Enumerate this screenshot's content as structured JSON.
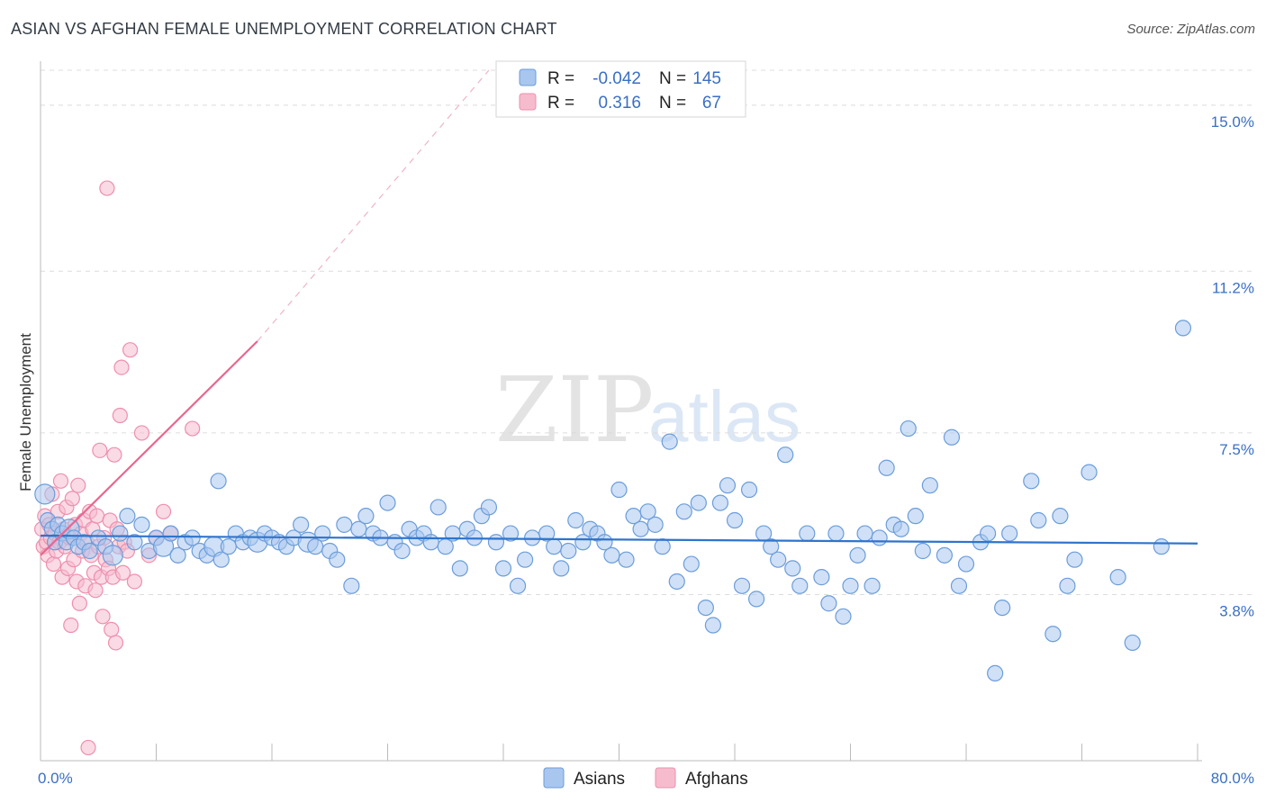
{
  "title": "ASIAN VS AFGHAN FEMALE UNEMPLOYMENT CORRELATION CHART",
  "source": "Source: ZipAtlas.com",
  "watermark": {
    "zip": "ZIP",
    "atlas": "atlas"
  },
  "colors": {
    "asian_fill": "#a9c6ee",
    "asian_stroke": "#6b9ddb",
    "asian_line": "#2f74cc",
    "afghan_fill": "#f6bccd",
    "afghan_stroke": "#ee8fad",
    "afghan_line": "#e8678f",
    "tick_color": "#3a6fc4",
    "grid": "#dcdcdc"
  },
  "legend": {
    "rows": [
      {
        "r_label": "R =",
        "r_value": "-0.042",
        "n_label": "N =",
        "n_value": "145"
      },
      {
        "r_label": "R =",
        "r_value": "0.316",
        "n_label": "N =",
        "n_value": "67"
      }
    ]
  },
  "bottom_legend": [
    "Asians",
    "Afghans"
  ],
  "chart_data": {
    "type": "scatter",
    "title": "ASIAN VS AFGHAN FEMALE UNEMPLOYMENT CORRELATION CHART",
    "xlabel": "",
    "ylabel": "Female Unemployment",
    "xlim": [
      0,
      80
    ],
    "ylim": [
      0,
      15.8
    ],
    "x_tick_labels": [
      "0.0%",
      "80.0%"
    ],
    "y_ticks": [
      3.8,
      7.5,
      11.2,
      15.0
    ],
    "y_tick_labels": [
      "3.8%",
      "7.5%",
      "11.2%",
      "15.0%"
    ],
    "grid": true,
    "legend_position": "top-center",
    "series": [
      {
        "name": "Asians",
        "R": -0.042,
        "N": 145,
        "trend": {
          "x": [
            0,
            80
          ],
          "y": [
            5.15,
            4.97
          ],
          "style": "solid"
        },
        "points": [
          [
            0.3,
            6.1
          ],
          [
            0.5,
            5.5
          ],
          [
            0.8,
            5.3
          ],
          [
            1.0,
            5.0
          ],
          [
            1.2,
            5.4
          ],
          [
            1.5,
            5.2
          ],
          [
            1.8,
            5.0
          ],
          [
            2.0,
            5.3
          ],
          [
            2.3,
            5.1
          ],
          [
            2.6,
            4.9
          ],
          [
            3.0,
            5.0
          ],
          [
            3.4,
            4.8
          ],
          [
            4.0,
            5.1
          ],
          [
            4.5,
            4.9
          ],
          [
            5.0,
            4.7
          ],
          [
            5.5,
            5.2
          ],
          [
            6.0,
            5.6
          ],
          [
            6.5,
            5.0
          ],
          [
            7.0,
            5.4
          ],
          [
            7.5,
            4.8
          ],
          [
            8.0,
            5.1
          ],
          [
            8.5,
            4.9
          ],
          [
            9.0,
            5.2
          ],
          [
            9.5,
            4.7
          ],
          [
            10.0,
            5.0
          ],
          [
            10.5,
            5.1
          ],
          [
            11.0,
            4.8
          ],
          [
            11.5,
            4.7
          ],
          [
            12.0,
            4.9
          ],
          [
            12.3,
            6.4
          ],
          [
            12.5,
            4.6
          ],
          [
            13.0,
            4.9
          ],
          [
            13.5,
            5.2
          ],
          [
            14.0,
            5.0
          ],
          [
            14.5,
            5.1
          ],
          [
            15.0,
            5.0
          ],
          [
            15.5,
            5.2
          ],
          [
            16.0,
            5.1
          ],
          [
            16.5,
            5.0
          ],
          [
            17.0,
            4.9
          ],
          [
            17.5,
            5.1
          ],
          [
            18.0,
            5.4
          ],
          [
            18.5,
            5.0
          ],
          [
            19.0,
            4.9
          ],
          [
            19.5,
            5.2
          ],
          [
            20.0,
            4.8
          ],
          [
            20.5,
            4.6
          ],
          [
            21.0,
            5.4
          ],
          [
            21.5,
            4.0
          ],
          [
            22.0,
            5.3
          ],
          [
            22.5,
            5.6
          ],
          [
            23.0,
            5.2
          ],
          [
            23.5,
            5.1
          ],
          [
            24.0,
            5.9
          ],
          [
            24.5,
            5.0
          ],
          [
            25.0,
            4.8
          ],
          [
            25.5,
            5.3
          ],
          [
            26.0,
            5.1
          ],
          [
            26.5,
            5.2
          ],
          [
            27.0,
            5.0
          ],
          [
            27.5,
            5.8
          ],
          [
            28.0,
            4.9
          ],
          [
            28.5,
            5.2
          ],
          [
            29.0,
            4.4
          ],
          [
            29.5,
            5.3
          ],
          [
            30.0,
            5.1
          ],
          [
            30.5,
            5.6
          ],
          [
            31.0,
            5.8
          ],
          [
            31.5,
            5.0
          ],
          [
            32.0,
            4.4
          ],
          [
            32.5,
            5.2
          ],
          [
            33.0,
            4.0
          ],
          [
            33.5,
            4.6
          ],
          [
            34.0,
            5.1
          ],
          [
            35.0,
            5.2
          ],
          [
            35.5,
            4.9
          ],
          [
            36.0,
            4.4
          ],
          [
            36.5,
            4.8
          ],
          [
            37.0,
            5.5
          ],
          [
            37.5,
            5.0
          ],
          [
            38.0,
            5.3
          ],
          [
            38.5,
            5.2
          ],
          [
            39.0,
            5.0
          ],
          [
            39.5,
            4.7
          ],
          [
            40.0,
            6.2
          ],
          [
            40.5,
            4.6
          ],
          [
            41.0,
            5.6
          ],
          [
            41.5,
            5.3
          ],
          [
            42.0,
            5.7
          ],
          [
            42.5,
            5.4
          ],
          [
            43.0,
            4.9
          ],
          [
            43.5,
            7.3
          ],
          [
            44.0,
            4.1
          ],
          [
            44.5,
            5.7
          ],
          [
            45.0,
            4.5
          ],
          [
            45.5,
            5.9
          ],
          [
            46.0,
            3.5
          ],
          [
            46.5,
            3.1
          ],
          [
            47.0,
            5.9
          ],
          [
            47.5,
            6.3
          ],
          [
            48.0,
            5.5
          ],
          [
            48.5,
            4.0
          ],
          [
            49.0,
            6.2
          ],
          [
            49.5,
            3.7
          ],
          [
            50.0,
            5.2
          ],
          [
            50.5,
            4.9
          ],
          [
            51.0,
            4.6
          ],
          [
            51.5,
            7.0
          ],
          [
            52.0,
            4.4
          ],
          [
            52.5,
            4.0
          ],
          [
            53.0,
            5.2
          ],
          [
            54.0,
            4.2
          ],
          [
            54.5,
            3.6
          ],
          [
            55.0,
            5.2
          ],
          [
            55.5,
            3.3
          ],
          [
            56.0,
            4.0
          ],
          [
            56.5,
            4.7
          ],
          [
            57.0,
            5.2
          ],
          [
            57.5,
            4.0
          ],
          [
            58.0,
            5.1
          ],
          [
            58.5,
            6.7
          ],
          [
            59.0,
            5.4
          ],
          [
            59.5,
            5.3
          ],
          [
            60.0,
            7.6
          ],
          [
            60.5,
            5.6
          ],
          [
            61.0,
            4.8
          ],
          [
            61.5,
            6.3
          ],
          [
            62.5,
            4.7
          ],
          [
            63.0,
            7.4
          ],
          [
            63.5,
            4.0
          ],
          [
            64.0,
            4.5
          ],
          [
            65.0,
            5.0
          ],
          [
            65.5,
            5.2
          ],
          [
            66.0,
            2.0
          ],
          [
            66.5,
            3.5
          ],
          [
            67.0,
            5.2
          ],
          [
            68.5,
            6.4
          ],
          [
            69.0,
            5.5
          ],
          [
            70.0,
            2.9
          ],
          [
            70.5,
            5.6
          ],
          [
            71.0,
            4.0
          ],
          [
            71.5,
            4.6
          ],
          [
            72.5,
            6.6
          ],
          [
            74.5,
            4.2
          ],
          [
            75.5,
            2.7
          ],
          [
            77.5,
            4.9
          ],
          [
            79.0,
            9.9
          ]
        ]
      },
      {
        "name": "Afghans",
        "R": 0.316,
        "N": 67,
        "trend": {
          "x": [
            0,
            15
          ],
          "y_solid": [
            4.7,
            9.6
          ],
          "y_dashed_end": [
            31.0,
            15.8
          ],
          "style": "solid then dashed"
        },
        "points": [
          [
            0.1,
            5.3
          ],
          [
            0.2,
            4.9
          ],
          [
            0.3,
            5.6
          ],
          [
            0.4,
            5.0
          ],
          [
            0.5,
            4.7
          ],
          [
            0.6,
            5.4
          ],
          [
            0.7,
            5.1
          ],
          [
            0.8,
            6.1
          ],
          [
            0.9,
            4.5
          ],
          [
            1.0,
            5.2
          ],
          [
            1.1,
            4.8
          ],
          [
            1.2,
            5.7
          ],
          [
            1.3,
            5.0
          ],
          [
            1.4,
            6.4
          ],
          [
            1.5,
            4.2
          ],
          [
            1.6,
            5.3
          ],
          [
            1.7,
            4.9
          ],
          [
            1.8,
            5.8
          ],
          [
            1.9,
            4.4
          ],
          [
            2.0,
            5.1
          ],
          [
            2.1,
            3.1
          ],
          [
            2.2,
            6.0
          ],
          [
            2.3,
            4.6
          ],
          [
            2.4,
            5.4
          ],
          [
            2.5,
            4.1
          ],
          [
            2.6,
            6.3
          ],
          [
            2.7,
            3.6
          ],
          [
            2.8,
            5.2
          ],
          [
            2.9,
            4.8
          ],
          [
            3.0,
            5.5
          ],
          [
            3.1,
            4.0
          ],
          [
            3.2,
            5.0
          ],
          [
            3.3,
            0.3
          ],
          [
            3.4,
            5.7
          ],
          [
            3.5,
            4.7
          ],
          [
            3.6,
            5.3
          ],
          [
            3.7,
            4.3
          ],
          [
            3.8,
            3.9
          ],
          [
            3.9,
            5.6
          ],
          [
            4.0,
            4.9
          ],
          [
            4.1,
            7.1
          ],
          [
            4.2,
            4.2
          ],
          [
            4.3,
            3.3
          ],
          [
            4.4,
            5.1
          ],
          [
            4.5,
            4.6
          ],
          [
            4.6,
            13.1
          ],
          [
            4.7,
            4.4
          ],
          [
            4.8,
            5.5
          ],
          [
            4.9,
            3.0
          ],
          [
            5.0,
            4.2
          ],
          [
            5.1,
            7.0
          ],
          [
            5.2,
            2.7
          ],
          [
            5.3,
            5.3
          ],
          [
            5.4,
            4.9
          ],
          [
            5.5,
            7.9
          ],
          [
            5.6,
            9.0
          ],
          [
            5.7,
            4.3
          ],
          [
            5.8,
            5.0
          ],
          [
            6.0,
            4.8
          ],
          [
            6.2,
            9.4
          ],
          [
            6.5,
            4.1
          ],
          [
            7.0,
            7.5
          ],
          [
            7.5,
            4.7
          ],
          [
            8.0,
            5.1
          ],
          [
            8.5,
            5.7
          ],
          [
            9.0,
            5.2
          ],
          [
            10.5,
            7.6
          ]
        ]
      }
    ]
  }
}
